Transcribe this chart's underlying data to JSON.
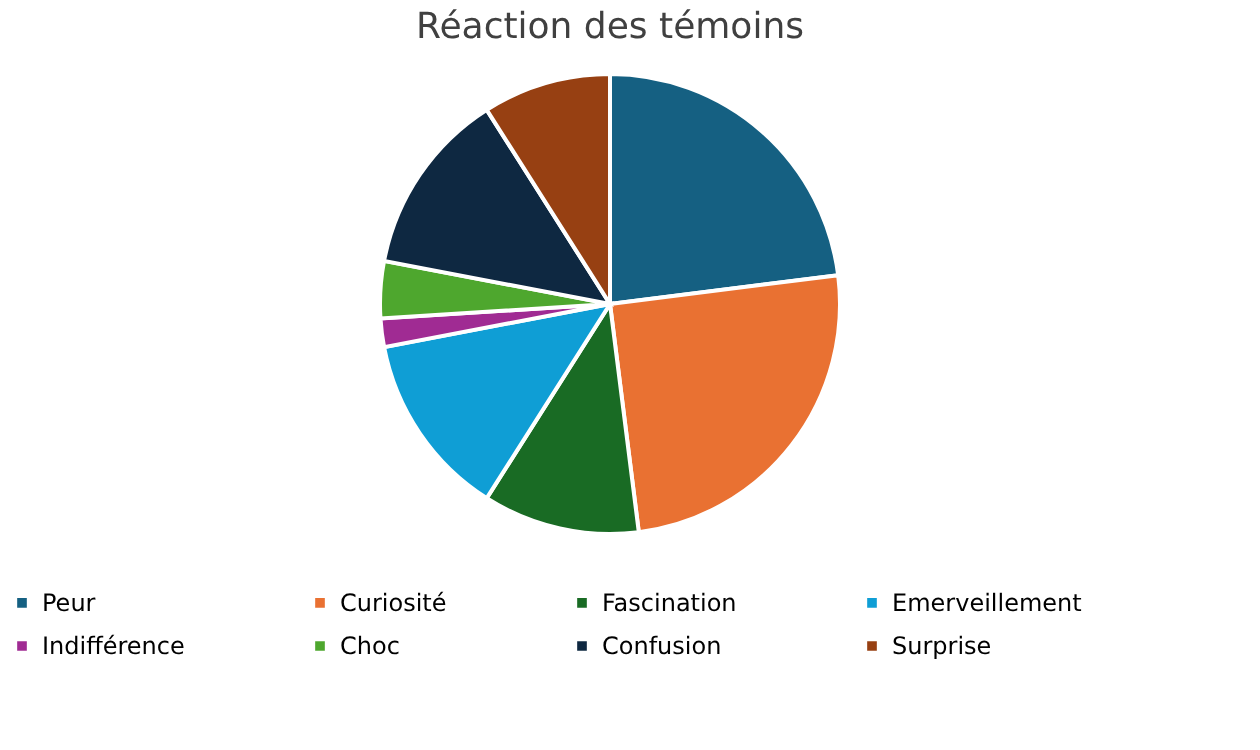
{
  "chart_data": {
    "type": "pie",
    "title": "Réaction des témoins",
    "categories": [
      "Peur",
      "Curiosité",
      "Fascination",
      "Emerveillement",
      "Indifférence",
      "Choc",
      "Confusion",
      "Surprise"
    ],
    "values": [
      23,
      25,
      11,
      13,
      2,
      4,
      13,
      9
    ],
    "colors": [
      "#156082",
      "#e97132",
      "#196b24",
      "#0f9ed5",
      "#a02b93",
      "#4ea72e",
      "#0e2841",
      "#974012"
    ],
    "legend": "bottom"
  }
}
